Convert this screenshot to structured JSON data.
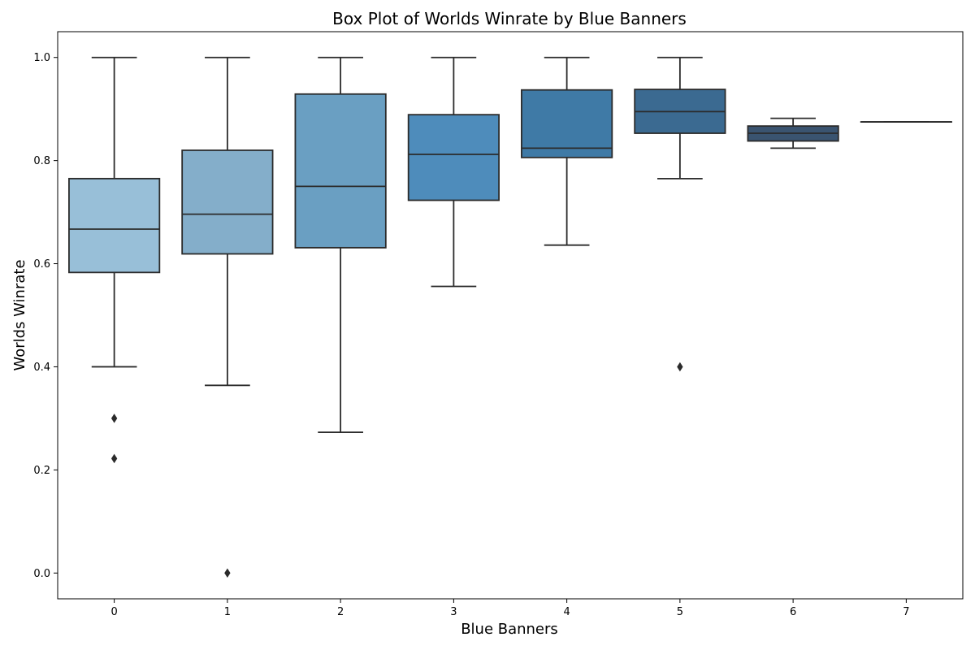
{
  "chart_data": {
    "type": "box",
    "title": "Box Plot of Worlds Winrate by Blue Banners",
    "xlabel": "Blue Banners",
    "ylabel": "Worlds Winrate",
    "ylim": [
      -0.05,
      1.05
    ],
    "yticks": [
      "0.0",
      "0.2",
      "0.4",
      "0.6",
      "0.8",
      "1.0"
    ],
    "categories": [
      "0",
      "1",
      "2",
      "3",
      "4",
      "5",
      "6",
      "7"
    ],
    "colors": [
      "#98bfd8",
      "#84aeca",
      "#6a9fc2",
      "#4e8cbb",
      "#3f7aa6",
      "#3b6a91",
      "#3a5470",
      "#2f4050"
    ],
    "edge_color": "#2b2b2b",
    "grid": false,
    "boxes": [
      {
        "category": "0",
        "whisker_low": 0.4,
        "q1": 0.583,
        "median": 0.667,
        "q3": 0.765,
        "whisker_high": 1.0,
        "outliers": [
          0.3,
          0.222
        ]
      },
      {
        "category": "1",
        "whisker_low": 0.364,
        "q1": 0.619,
        "median": 0.696,
        "q3": 0.82,
        "whisker_high": 1.0,
        "outliers": [
          0.0
        ]
      },
      {
        "category": "2",
        "whisker_low": 0.273,
        "q1": 0.631,
        "median": 0.75,
        "q3": 0.929,
        "whisker_high": 1.0,
        "outliers": []
      },
      {
        "category": "3",
        "whisker_low": 0.556,
        "q1": 0.723,
        "median": 0.812,
        "q3": 0.889,
        "whisker_high": 1.0,
        "outliers": []
      },
      {
        "category": "4",
        "whisker_low": 0.636,
        "q1": 0.806,
        "median": 0.824,
        "q3": 0.937,
        "whisker_high": 1.0,
        "outliers": []
      },
      {
        "category": "5",
        "whisker_low": 0.765,
        "q1": 0.853,
        "median": 0.895,
        "q3": 0.938,
        "whisker_high": 1.0,
        "outliers": [
          0.4
        ]
      },
      {
        "category": "6",
        "whisker_low": 0.824,
        "q1": 0.838,
        "median": 0.853,
        "q3": 0.867,
        "whisker_high": 0.882,
        "outliers": []
      },
      {
        "category": "7",
        "whisker_low": 0.875,
        "q1": 0.875,
        "median": 0.875,
        "q3": 0.875,
        "whisker_high": 0.875,
        "outliers": []
      }
    ]
  }
}
